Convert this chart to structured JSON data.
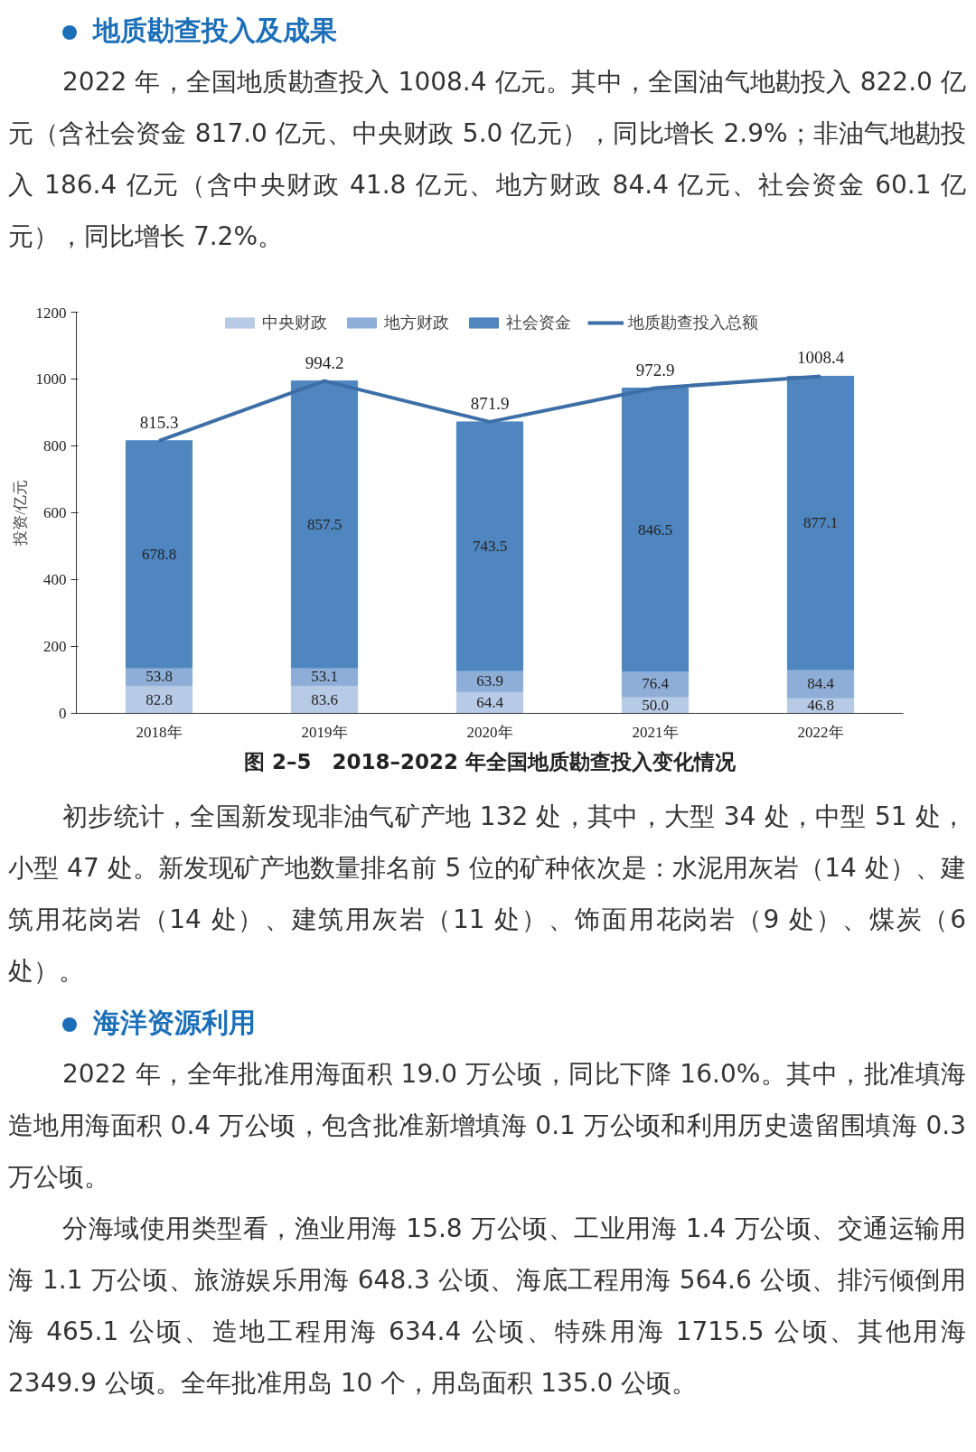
{
  "chart_data": {
    "type": "bar",
    "stacked": true,
    "title": "图 2–5　2018–2022 年全国地质勘查投入变化情况",
    "ylabel": "投资/亿元",
    "categories": [
      "2018年",
      "2019年",
      "2020年",
      "2021年",
      "2022年"
    ],
    "series": [
      {
        "name": "中央财政",
        "color": "#b7cbe6",
        "values": [
          82.8,
          83.6,
          64.4,
          50.0,
          46.8
        ],
        "value_labels": [
          "82.8",
          "83.6",
          "64.4",
          "50.0",
          "46.8"
        ]
      },
      {
        "name": "地方财政",
        "color": "#8eaed8",
        "values": [
          53.8,
          53.1,
          63.9,
          76.4,
          84.4
        ]
      },
      {
        "name": "社会资金",
        "color": "#4f86bf",
        "values": [
          678.8,
          857.5,
          743.5,
          846.5,
          877.1
        ]
      },
      {
        "name": "地质勘查投入总额",
        "type": "line",
        "color": "#3d6fa6",
        "values": [
          815.3,
          994.2,
          871.9,
          972.9,
          1008.4
        ]
      }
    ],
    "ylim": [
      0,
      1200
    ],
    "yticks": [
      0,
      200,
      400,
      600,
      800,
      1000,
      1200
    ],
    "grid": false,
    "legend": "top",
    "data_labels": true,
    "marker": "none",
    "line_style": "solid",
    "annotations": [
      "地质勘查投入及成果",
      "2022 年，全国地质勘查投入 1008.4 亿元。其中，全国油气地勘投入 822.0 亿元（含社会资金 817.0 亿元、中央财政 5.0 亿元），同比增长 2.9%；非油气地勘投入 186.4 亿元（含中央财政 41.8 亿元、地方财政 84.4 亿元、社会资金 60.1 亿元），同比增长 7.2%。",
      "初步统计，全国新发现非油气矿产地 132 处，其中，大型 34 处，中型 51 处，小型 47 处。新发现矿产地数量排名前 5 位的矿种依次是：水泥用灰岩（14 处）、建筑用花岗岩（14 处）、建筑用灰岩（11 处）、饰面用花岗岩（9 处）、煤炭（6 处）。",
      "海洋资源利用",
      "2022 年，全年批准用海面积 19.0 万公顷，同比下降 16.0%。其中，批准填海造地用海面积 0.4 万公顷，包含批准新增填海 0.1 万公顷和利用历史遗留围填海 0.3 万公顷。",
      "分海域使用类型看，渔业用海 15.8 万公顷、工业用海 1.4 万公顷、交通运输用海 1.1 万公顷、旅游娱乐用海 648.3 公顷、海底工程用海 564.6 公顷、排污倾倒用海 465.1 公顷、造地工程用海 634.4 公顷、特殊用海 1715.5 公顷、其他用海 2349.9 公顷。全年批准用岛 10 个，用岛面积 135.0 公顷。"
    ]
  }
}
